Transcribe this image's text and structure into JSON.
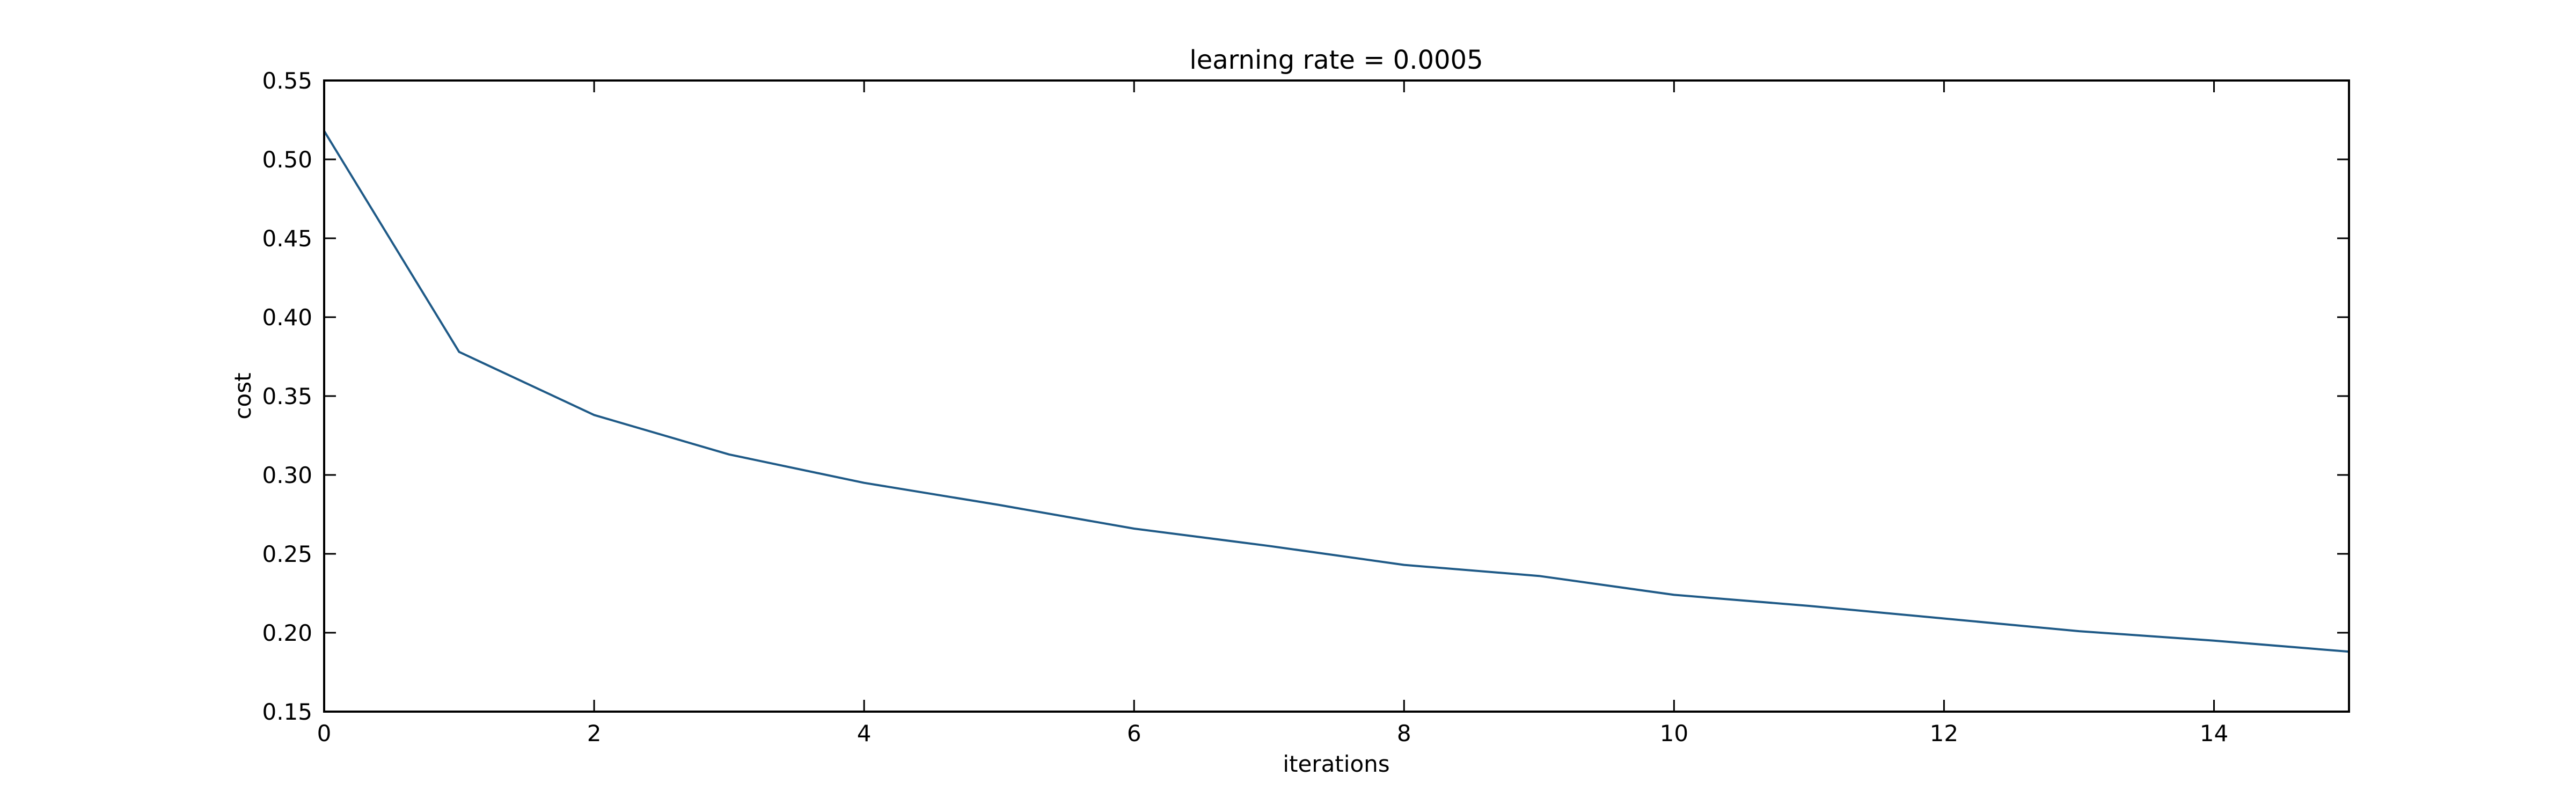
{
  "chart_data": {
    "type": "line",
    "title": "learning rate = 0.0005",
    "xlabel": "iterations",
    "ylabel": "cost",
    "xlim": [
      0,
      15
    ],
    "ylim": [
      0.15,
      0.55
    ],
    "xticks": [
      0,
      2,
      4,
      6,
      8,
      10,
      12,
      14
    ],
    "yticks": [
      0.15,
      0.2,
      0.25,
      0.3,
      0.35,
      0.4,
      0.45,
      0.5,
      0.55
    ],
    "grid": false,
    "series": [
      {
        "color": "#1f5a87",
        "x": [
          0,
          1,
          2,
          3,
          4,
          5,
          6,
          7,
          8,
          9,
          10,
          11,
          12,
          13,
          14,
          15
        ],
        "y": [
          0.518,
          0.378,
          0.338,
          0.313,
          0.295,
          0.281,
          0.266,
          0.255,
          0.243,
          0.236,
          0.224,
          0.217,
          0.209,
          0.201,
          0.195,
          0.188
        ]
      }
    ]
  }
}
